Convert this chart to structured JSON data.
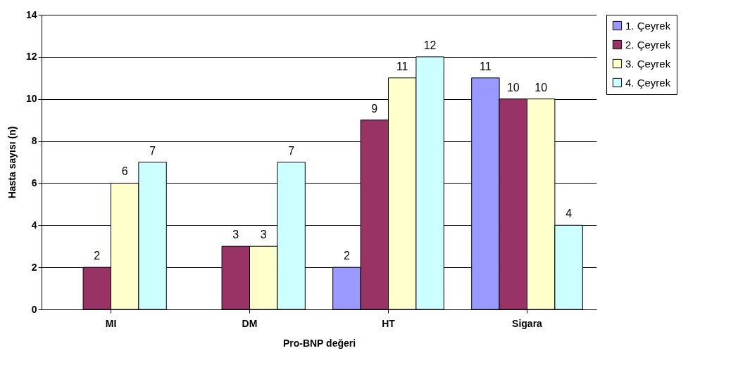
{
  "chart_data": {
    "type": "bar",
    "xlabel": "Pro-BNP değeri",
    "ylabel": "Hasta sayısı (n)",
    "categories": [
      "MI",
      "DM",
      "HT",
      "Sigara"
    ],
    "series": [
      {
        "name": "1. Çeyrek",
        "color": "#9999ff",
        "values": [
          null,
          null,
          2,
          11
        ]
      },
      {
        "name": "2. Çeyrek",
        "color": "#993366",
        "values": [
          2,
          3,
          9,
          10
        ]
      },
      {
        "name": "3. Çeyrek",
        "color": "#ffffcc",
        "values": [
          6,
          3,
          11,
          10
        ]
      },
      {
        "name": "4. Çeyrek",
        "color": "#ccffff",
        "values": [
          7,
          7,
          12,
          4
        ]
      }
    ],
    "ylim": [
      0,
      14
    ],
    "yticks": [
      0,
      2,
      4,
      6,
      8,
      10,
      12,
      14
    ],
    "grid": "y",
    "legend": "right",
    "data_labels": true
  }
}
